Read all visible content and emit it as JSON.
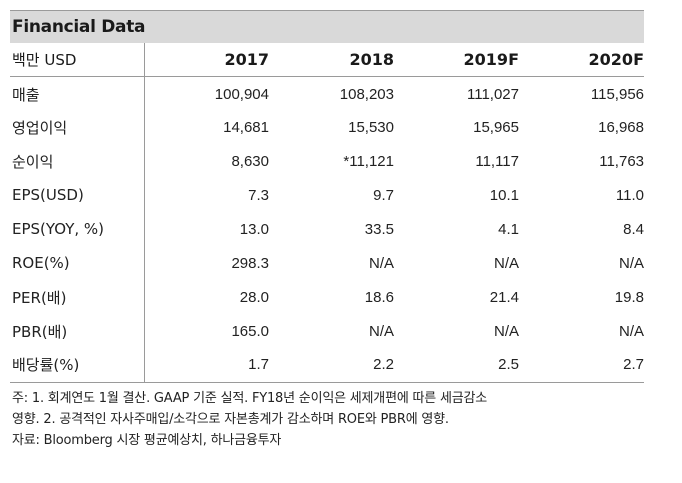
{
  "title": "Financial Data",
  "header": {
    "label": "백만 USD",
    "years": [
      "2017",
      "2018",
      "2019F",
      "2020F"
    ]
  },
  "rows": [
    {
      "label": "매출",
      "values": [
        "100,904",
        "108,203",
        "111,027",
        "115,956"
      ]
    },
    {
      "label": "영업이익",
      "values": [
        "14,681",
        "15,530",
        "15,965",
        "16,968"
      ]
    },
    {
      "label": "순이익",
      "values": [
        "8,630",
        "*11,121",
        "11,117",
        "11,763"
      ]
    },
    {
      "label": "EPS(USD)",
      "values": [
        "7.3",
        "9.7",
        "10.1",
        "11.0"
      ]
    },
    {
      "label": "EPS(YOY, %)",
      "values": [
        "13.0",
        "33.5",
        "4.1",
        "8.4"
      ]
    },
    {
      "label": "ROE(%)",
      "values": [
        "298.3",
        "N/A",
        "N/A",
        "N/A"
      ]
    },
    {
      "label": "PER(배)",
      "values": [
        "28.0",
        "18.6",
        "21.4",
        "19.8"
      ]
    },
    {
      "label": "PBR(배)",
      "values": [
        "165.0",
        "N/A",
        "N/A",
        "N/A"
      ]
    },
    {
      "label": "배당률(%)",
      "values": [
        "1.7",
        "2.2",
        "2.5",
        "2.7"
      ]
    }
  ],
  "notes": [
    "주: 1. 회계연도 1월 결산. GAAP 기준 실적. FY18년 순이익은 세제개편에 따른 세금감소",
    "영향. 2. 공격적인 자사주매입/소각으로 자본총계가 감소하며 ROE와 PBR에 영향.",
    "자료: Bloomberg 시장 평균예상치, 하나금융투자"
  ]
}
